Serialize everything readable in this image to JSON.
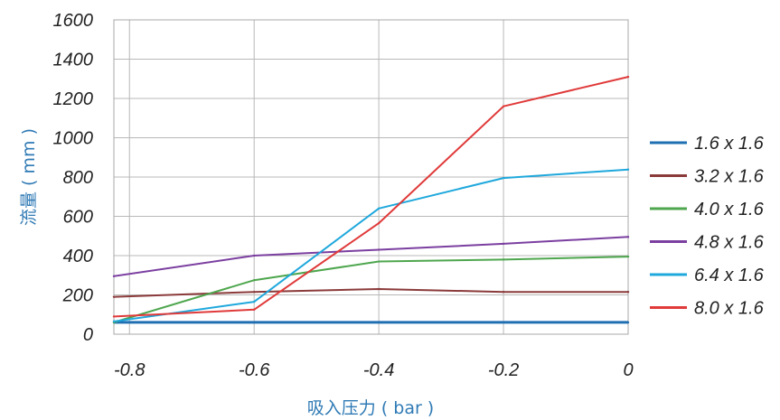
{
  "chart_data": {
    "type": "line",
    "title": "",
    "xlabel": "吸入压力 ( bar )",
    "ylabel": "流量 ( mm )",
    "xlim": [
      -0.825,
      0
    ],
    "ylim": [
      0,
      1600
    ],
    "x_ticks": [
      "-0.8",
      "-0.6",
      "-0.4",
      "-0.2",
      "0"
    ],
    "y_ticks": [
      "0",
      "200",
      "400",
      "600",
      "800",
      "1000",
      "1200",
      "1400",
      "1600"
    ],
    "grid": true,
    "legend_position": "right",
    "x": [
      -0.825,
      -0.6,
      -0.4,
      -0.2,
      0
    ],
    "series": [
      {
        "name": "1.6 x 1.6",
        "color": "#1f6fb2",
        "values": [
          60,
          60,
          60,
          60,
          60
        ]
      },
      {
        "name": "3.2 x 1.6",
        "color": "#8b3a3a",
        "values": [
          190,
          215,
          230,
          215,
          215
        ]
      },
      {
        "name": "4.0 x 1.6",
        "color": "#4ea64e",
        "values": [
          60,
          275,
          370,
          380,
          395
        ]
      },
      {
        "name": "4.8 x 1.6",
        "color": "#7b3fa0",
        "values": [
          295,
          400,
          430,
          460,
          495
        ]
      },
      {
        "name": "6.4 x 1.6",
        "color": "#1fa8dc",
        "values": [
          65,
          165,
          640,
          795,
          838
        ]
      },
      {
        "name": "8.0 x 1.6",
        "color": "#e03a3a",
        "values": [
          90,
          125,
          565,
          1160,
          1310
        ]
      }
    ]
  }
}
